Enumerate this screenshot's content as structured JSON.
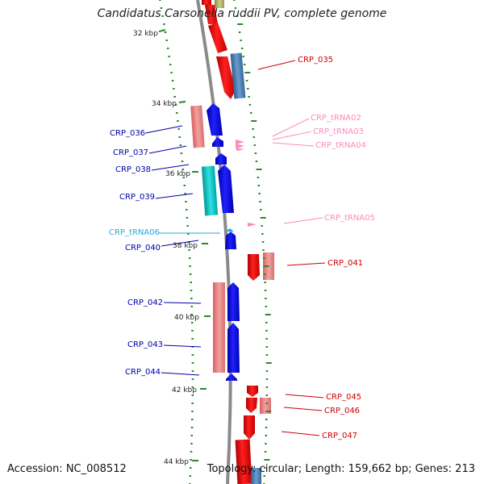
{
  "title": "Candidatus Carsonella ruddii PV, complete genome",
  "accession": "Accession: NC_008512",
  "summary": "Topology: circular; Length: 159,662 bp; Genes: 213",
  "colors": {
    "cds_red": "#ff0000",
    "cds_blue": "#0000ff",
    "pink_light": "#f08080",
    "steel_blue": "#4a7fb5",
    "cyan": "#00c8c8",
    "trna_pink": "#ff88bb",
    "trna_cyan": "#22aadd",
    "tick_green": "#2a8a2a",
    "backbone_gray": "#888888"
  },
  "kbp_ticks": [
    "32 kbp",
    "34 kbp",
    "36 kbp",
    "38 kbp",
    "40 kbp",
    "42 kbp",
    "44 kbp"
  ],
  "gene_labels": [
    {
      "id": "crp035",
      "text": "CRP_035",
      "color": "#cc0000"
    },
    {
      "id": "trna02",
      "text": "CRP_tRNA02",
      "color": "#ff88bb"
    },
    {
      "id": "trna03",
      "text": "CRP_tRNA03",
      "color": "#ff88bb"
    },
    {
      "id": "trna04",
      "text": "CRP_tRNA04",
      "color": "#ff88bb"
    },
    {
      "id": "crp036",
      "text": "CRP_036",
      "color": "#0000aa"
    },
    {
      "id": "crp037",
      "text": "CRP_037",
      "color": "#0000aa"
    },
    {
      "id": "crp038",
      "text": "CRP_038",
      "color": "#0000aa"
    },
    {
      "id": "crp039",
      "text": "CRP_039",
      "color": "#0000aa"
    },
    {
      "id": "trna05",
      "text": "CRP_tRNA05",
      "color": "#ff88bb"
    },
    {
      "id": "trna06",
      "text": "CRP_tRNA06",
      "color": "#22aadd"
    },
    {
      "id": "crp040",
      "text": "CRP_040",
      "color": "#0000aa"
    },
    {
      "id": "crp041",
      "text": "CRP_041",
      "color": "#cc0000"
    },
    {
      "id": "crp042",
      "text": "CRP_042",
      "color": "#0000aa"
    },
    {
      "id": "crp043",
      "text": "CRP_043",
      "color": "#0000aa"
    },
    {
      "id": "crp044",
      "text": "CRP_044",
      "color": "#0000aa"
    },
    {
      "id": "crp045",
      "text": "CRP_045",
      "color": "#cc0000"
    },
    {
      "id": "crp046",
      "text": "CRP_046",
      "color": "#cc0000"
    },
    {
      "id": "crp047",
      "text": "CRP_047",
      "color": "#cc0000"
    }
  ]
}
